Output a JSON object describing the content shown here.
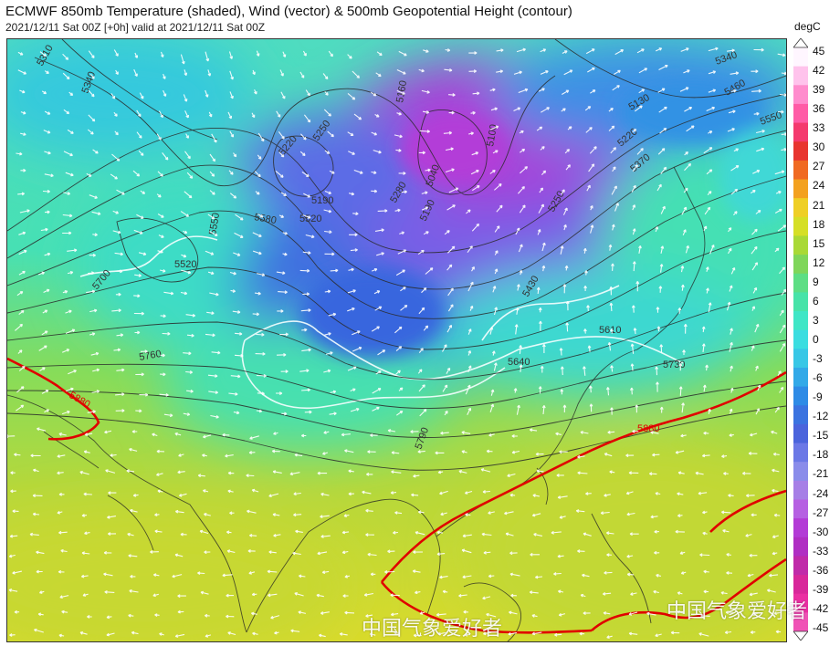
{
  "header": {
    "title": "ECMWF 850mb Temperature (shaded), Wind (vector) & 500mb Geopotential Height (contour)",
    "subtitle": "2021/12/11 Sat 00Z [+0h] valid at 2021/12/11 Sat 00Z"
  },
  "colorbar": {
    "unit": "degC",
    "ticks": [
      "45",
      "42",
      "39",
      "36",
      "33",
      "30",
      "27",
      "24",
      "21",
      "18",
      "15",
      "12",
      "9",
      "6",
      "3",
      "0",
      "-3",
      "-6",
      "-9",
      "-12",
      "-15",
      "-18",
      "-21",
      "-24",
      "-27",
      "-30",
      "-33",
      "-36",
      "-39",
      "-42",
      "-45"
    ],
    "colors": [
      "#fff6ff",
      "#ffc3ec",
      "#ff8ccd",
      "#ff5ca6",
      "#f43a6e",
      "#e8352f",
      "#f06a22",
      "#f3a11f",
      "#efcf25",
      "#d5df26",
      "#a9d936",
      "#7fd65a",
      "#5dde84",
      "#47e3a8",
      "#3fe6c6",
      "#3bdde0",
      "#38c7e6",
      "#32a9e8",
      "#2e8be6",
      "#3b73e0",
      "#4b64dc",
      "#6b78e6",
      "#8a8cea",
      "#a67fe6",
      "#b660e2",
      "#b33bd6",
      "#b02ec3",
      "#c02aa9",
      "#d8279a",
      "#ea2fa2",
      "#f052b6"
    ]
  },
  "contours": {
    "labels": [
      "5310",
      "5340",
      "5220",
      "5250",
      "5190",
      "5160",
      "5100",
      "5130",
      "5220",
      "5340",
      "5250",
      "5370",
      "5460",
      "5550",
      "5280",
      "5190",
      "5040",
      "5580",
      "5520",
      "5550",
      "5520",
      "5700",
      "5760",
      "5430",
      "5610",
      "5640",
      "5730",
      "5790",
      "5880",
      "5880"
    ],
    "color": "#333333",
    "ridge_color": "#e00000"
  },
  "watermark": {
    "text_bottom": "中国气象爱好者",
    "text_right": "中国气象爱好者"
  }
}
